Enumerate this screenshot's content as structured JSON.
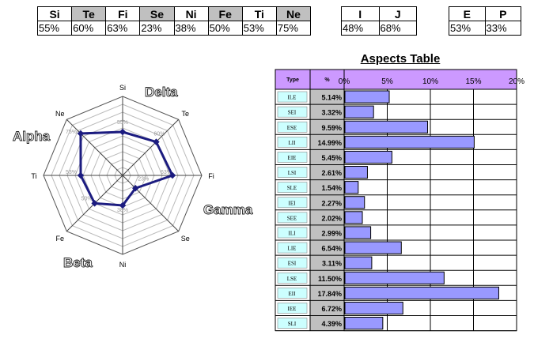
{
  "functions_table": {
    "headers": [
      "Si",
      "Te",
      "Fi",
      "Se",
      "Ni",
      "Fe",
      "Ti",
      "Ne"
    ],
    "values": [
      "55%",
      "60%",
      "63%",
      "23%",
      "38%",
      "50%",
      "53%",
      "75%"
    ],
    "grey_headers": [
      1,
      3,
      5,
      7
    ]
  },
  "ij_table": {
    "headers": [
      "I",
      "J"
    ],
    "values": [
      "48%",
      "68%"
    ]
  },
  "ep_table": {
    "headers": [
      "E",
      "P"
    ],
    "values": [
      "53%",
      "33%"
    ]
  },
  "quadra_labels": {
    "alpha": "Alpha",
    "beta": "Beta",
    "gamma": "Gamma",
    "delta": "Delta"
  },
  "colors": {
    "radar_line": "#1c1c80",
    "bar_fill": "#9999ff",
    "header_purple": "#cc99ff",
    "type_cell": "#ccffff",
    "pct_cell": "#c0c0c0"
  },
  "chart_data": [
    {
      "type": "radar",
      "axes": [
        "Si",
        "Te",
        "Fi",
        "Se",
        "Ni",
        "Fe",
        "Ti",
        "Ne"
      ],
      "values": [
        55,
        60,
        63,
        23,
        38,
        50,
        53,
        75
      ],
      "point_labels": [
        "55%",
        "60%",
        "63%",
        "23%",
        "38%",
        "50%",
        "53%",
        "75%"
      ],
      "range": [
        0,
        100
      ]
    },
    {
      "type": "bar",
      "orientation": "horizontal",
      "title": "Aspects Table",
      "column_headers": {
        "type": "Type",
        "pct": "%"
      },
      "categories": [
        "ILE",
        "SEI",
        "ESE",
        "LII",
        "EIE",
        "LSI",
        "SLE",
        "IEI",
        "SEE",
        "ILI",
        "LIE",
        "ESI",
        "LSE",
        "EII",
        "IEE",
        "SLI"
      ],
      "values": [
        5.14,
        3.32,
        9.59,
        14.99,
        5.45,
        2.61,
        1.54,
        2.27,
        2.02,
        2.99,
        6.54,
        3.11,
        11.5,
        17.84,
        6.72,
        4.39
      ],
      "value_labels": [
        "5.14%",
        "3.32%",
        "9.59%",
        "14.99%",
        "5.45%",
        "2.61%",
        "1.54%",
        "2.27%",
        "2.02%",
        "2.99%",
        "6.54%",
        "3.11%",
        "11.50%",
        "17.84%",
        "6.72%",
        "4.39%"
      ],
      "xlim": [
        0,
        20
      ],
      "ticks": [
        "0%",
        "5%",
        "10%",
        "15%",
        "20%"
      ]
    }
  ]
}
